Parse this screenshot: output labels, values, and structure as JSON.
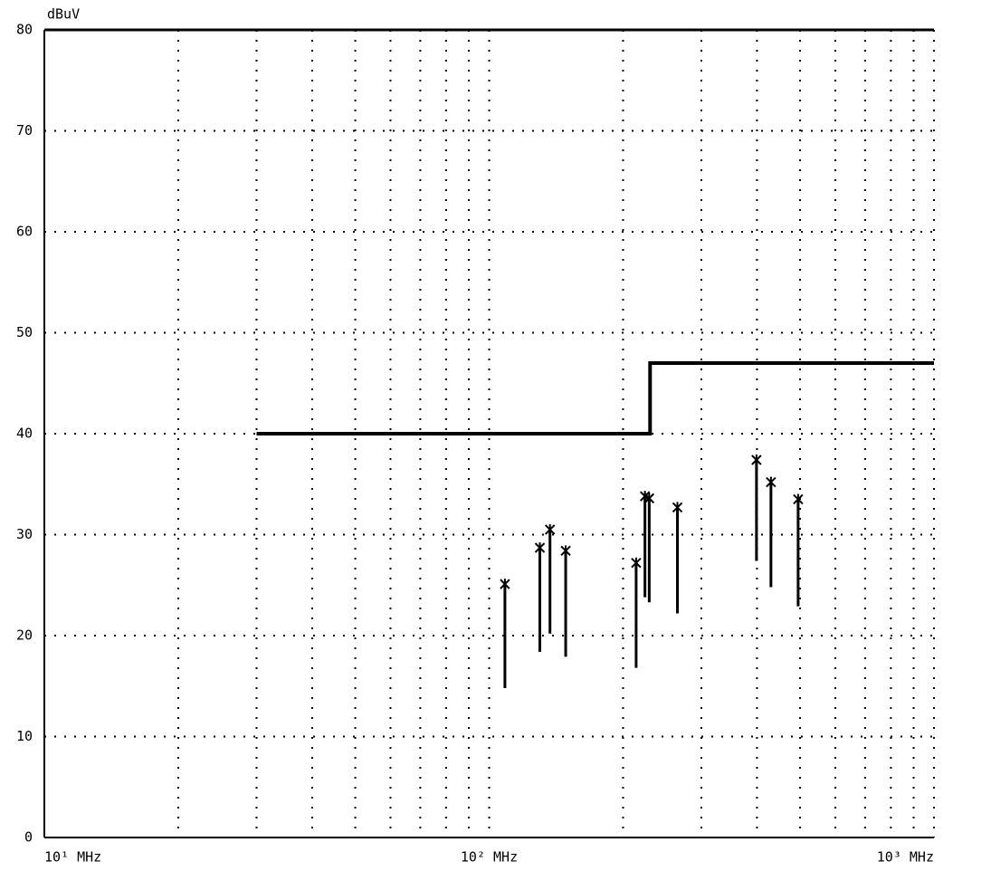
{
  "chart_data": {
    "type": "emission-scan",
    "y_label": "dBuV",
    "xscale": "log",
    "grid": true,
    "xlim": [
      10,
      1000
    ],
    "ylim": [
      0,
      80
    ],
    "xticks": [
      {
        "value": 10,
        "label": "10¹ MHz"
      },
      {
        "value": 100,
        "label": "10² MHz"
      },
      {
        "value": 1000,
        "label": "10³ MHz"
      }
    ],
    "x_minor_grid": [
      20,
      30,
      40,
      50,
      60,
      70,
      80,
      90,
      200,
      300,
      400,
      500,
      600,
      700,
      800,
      900
    ],
    "yticks": [
      0,
      10,
      20,
      30,
      40,
      50,
      60,
      70,
      80
    ],
    "limit": {
      "color": "#000000",
      "x": [
        30,
        230,
        230,
        1000
      ],
      "values": [
        40,
        40,
        47,
        47
      ]
    },
    "peaks": {
      "color": "#000000",
      "x": [
        108.5,
        130,
        137,
        148.6,
        214,
        224,
        229,
        265,
        399,
        430,
        495
      ],
      "values": [
        25.1,
        28.7,
        30.5,
        28.4,
        27.2,
        33.8,
        33.6,
        32.7,
        37.4,
        35.2,
        33.5
      ],
      "lows": [
        14.8,
        18.4,
        20.2,
        17.9,
        16.8,
        23.8,
        23.3,
        22.2,
        27.4,
        24.8,
        22.9
      ]
    }
  }
}
